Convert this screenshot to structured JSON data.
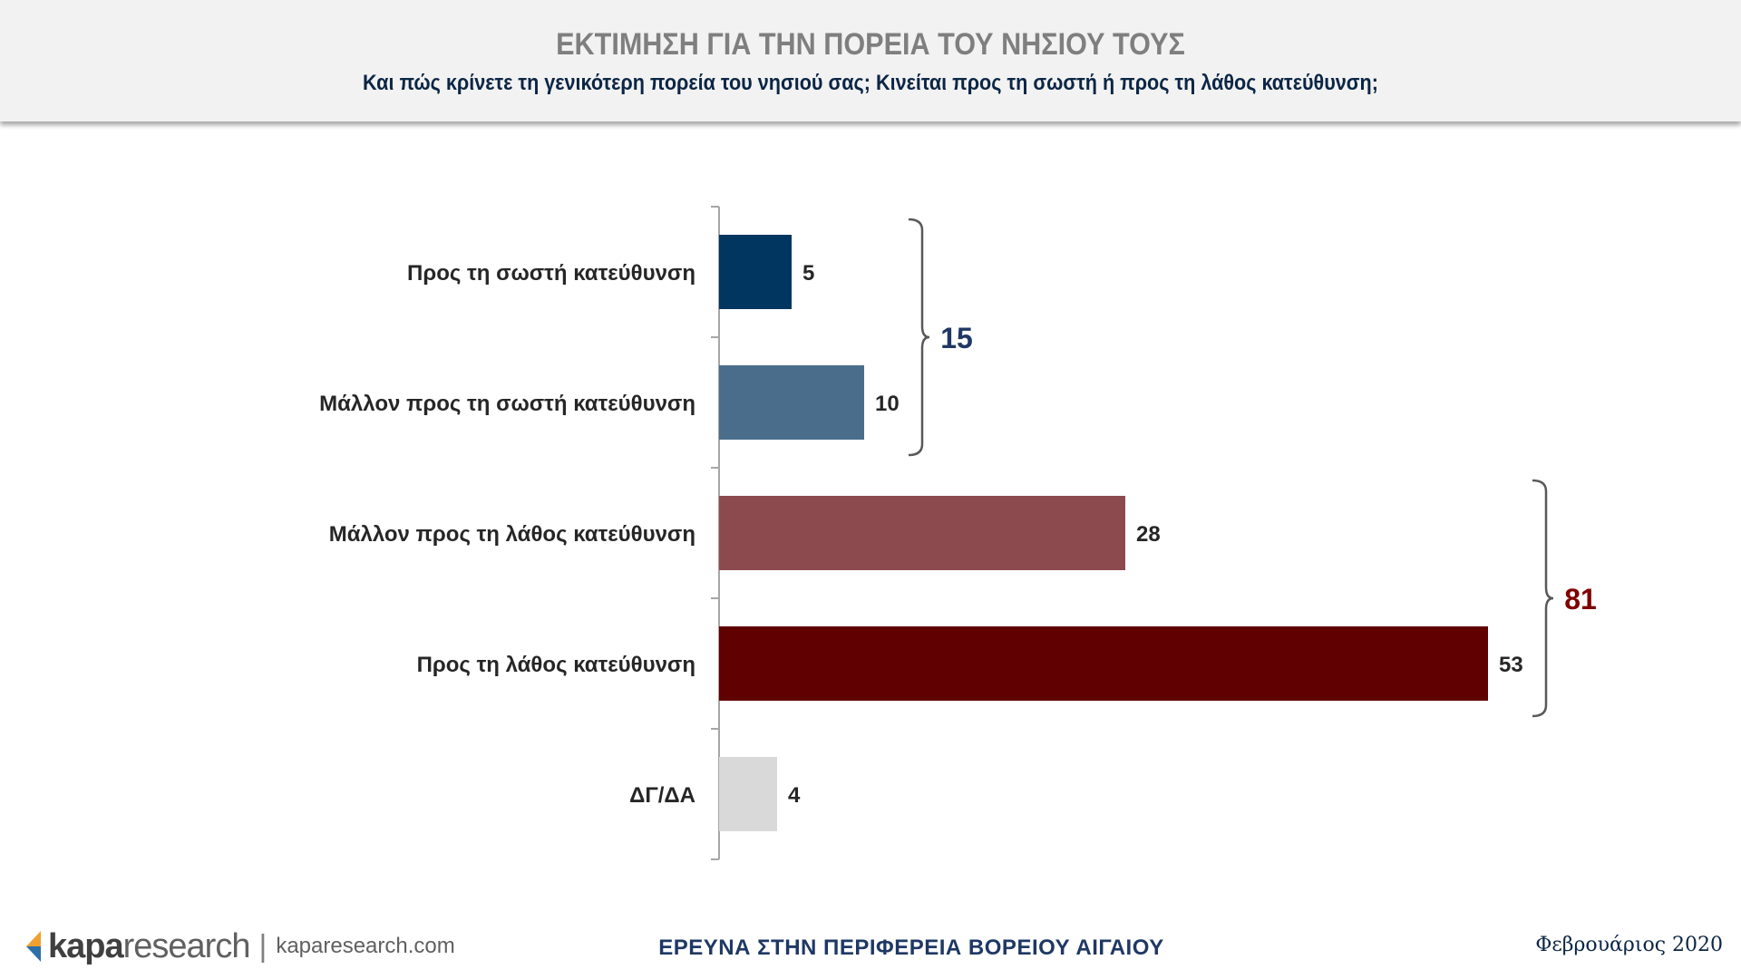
{
  "header": {
    "title": "ΕΚΤΙΜΗΣΗ ΓΙΑ ΤΗΝ ΠΟΡΕΙΑ ΤΟΥ ΝΗΣΙΟΥ ΤΟΥΣ",
    "subtitle": "Και πώς κρίνετε τη γενικότερη πορεία του νησιού σας; Κινείται προς τη σωστή ή προς τη λάθος κατεύθυνση;"
  },
  "chart_data": {
    "type": "bar",
    "orientation": "horizontal",
    "categories": [
      "Προς τη σωστή κατεύθυνση",
      "Μάλλον προς τη σωστή κατεύθυνση",
      "Μάλλον προς τη λάθος κατεύθυνση",
      "Προς τη λάθος κατεύθυνση",
      "ΔΓ/ΔΑ"
    ],
    "values": [
      5,
      10,
      28,
      53,
      4
    ],
    "colors": [
      "#003660",
      "#4a6d8c",
      "#8c4a4f",
      "#600000",
      "#d9d9d9"
    ],
    "xlim": [
      0,
      55
    ],
    "grid": false,
    "groups": [
      {
        "from": 0,
        "to": 1,
        "total": "15",
        "color": "#1f3864"
      },
      {
        "from": 2,
        "to": 3,
        "total": "81",
        "color": "#7f0000"
      }
    ]
  },
  "footer": {
    "brand_bold": "kapa",
    "brand_light": "research",
    "separator": "|",
    "website": "kaparesearch.com",
    "center_text": "ΕΡΕΥΝΑ ΣΤΗΝ ΠΕΡΙΦΕΡΕΙΑ ΒΟΡΕΙΟΥ ΑΙΓΑΙΟΥ",
    "date": "Φεβρουάριος 2020"
  }
}
